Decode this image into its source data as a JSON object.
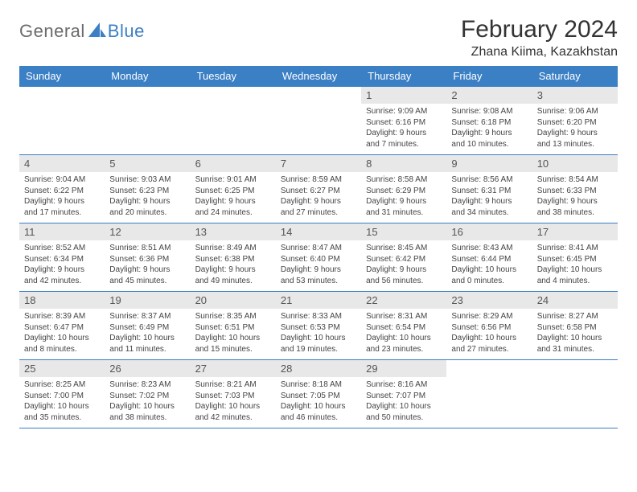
{
  "logo": {
    "text1": "General",
    "text2": "Blue"
  },
  "title": {
    "month": "February 2024",
    "location": "Zhana Kiima, Kazakhstan"
  },
  "styling": {
    "header_bg": "#3b7fc4",
    "header_text": "#ffffff",
    "daynum_bg": "#e8e8e8",
    "row_border": "#3b7fc4",
    "logo_gray": "#6b6b6b",
    "logo_blue": "#3b7fc4",
    "body_bg": "#ffffff",
    "title_fontsize": 30,
    "location_fontsize": 16,
    "dayheader_fontsize": 13,
    "cell_fontsize": 10
  },
  "dayHeaders": [
    "Sunday",
    "Monday",
    "Tuesday",
    "Wednesday",
    "Thursday",
    "Friday",
    "Saturday"
  ],
  "weeks": [
    [
      null,
      null,
      null,
      null,
      {
        "d": "1",
        "sunrise": "9:09 AM",
        "sunset": "6:16 PM",
        "daylight": "9 hours and 7 minutes."
      },
      {
        "d": "2",
        "sunrise": "9:08 AM",
        "sunset": "6:18 PM",
        "daylight": "9 hours and 10 minutes."
      },
      {
        "d": "3",
        "sunrise": "9:06 AM",
        "sunset": "6:20 PM",
        "daylight": "9 hours and 13 minutes."
      }
    ],
    [
      {
        "d": "4",
        "sunrise": "9:04 AM",
        "sunset": "6:22 PM",
        "daylight": "9 hours and 17 minutes."
      },
      {
        "d": "5",
        "sunrise": "9:03 AM",
        "sunset": "6:23 PM",
        "daylight": "9 hours and 20 minutes."
      },
      {
        "d": "6",
        "sunrise": "9:01 AM",
        "sunset": "6:25 PM",
        "daylight": "9 hours and 24 minutes."
      },
      {
        "d": "7",
        "sunrise": "8:59 AM",
        "sunset": "6:27 PM",
        "daylight": "9 hours and 27 minutes."
      },
      {
        "d": "8",
        "sunrise": "8:58 AM",
        "sunset": "6:29 PM",
        "daylight": "9 hours and 31 minutes."
      },
      {
        "d": "9",
        "sunrise": "8:56 AM",
        "sunset": "6:31 PM",
        "daylight": "9 hours and 34 minutes."
      },
      {
        "d": "10",
        "sunrise": "8:54 AM",
        "sunset": "6:33 PM",
        "daylight": "9 hours and 38 minutes."
      }
    ],
    [
      {
        "d": "11",
        "sunrise": "8:52 AM",
        "sunset": "6:34 PM",
        "daylight": "9 hours and 42 minutes."
      },
      {
        "d": "12",
        "sunrise": "8:51 AM",
        "sunset": "6:36 PM",
        "daylight": "9 hours and 45 minutes."
      },
      {
        "d": "13",
        "sunrise": "8:49 AM",
        "sunset": "6:38 PM",
        "daylight": "9 hours and 49 minutes."
      },
      {
        "d": "14",
        "sunrise": "8:47 AM",
        "sunset": "6:40 PM",
        "daylight": "9 hours and 53 minutes."
      },
      {
        "d": "15",
        "sunrise": "8:45 AM",
        "sunset": "6:42 PM",
        "daylight": "9 hours and 56 minutes."
      },
      {
        "d": "16",
        "sunrise": "8:43 AM",
        "sunset": "6:44 PM",
        "daylight": "10 hours and 0 minutes."
      },
      {
        "d": "17",
        "sunrise": "8:41 AM",
        "sunset": "6:45 PM",
        "daylight": "10 hours and 4 minutes."
      }
    ],
    [
      {
        "d": "18",
        "sunrise": "8:39 AM",
        "sunset": "6:47 PM",
        "daylight": "10 hours and 8 minutes."
      },
      {
        "d": "19",
        "sunrise": "8:37 AM",
        "sunset": "6:49 PM",
        "daylight": "10 hours and 11 minutes."
      },
      {
        "d": "20",
        "sunrise": "8:35 AM",
        "sunset": "6:51 PM",
        "daylight": "10 hours and 15 minutes."
      },
      {
        "d": "21",
        "sunrise": "8:33 AM",
        "sunset": "6:53 PM",
        "daylight": "10 hours and 19 minutes."
      },
      {
        "d": "22",
        "sunrise": "8:31 AM",
        "sunset": "6:54 PM",
        "daylight": "10 hours and 23 minutes."
      },
      {
        "d": "23",
        "sunrise": "8:29 AM",
        "sunset": "6:56 PM",
        "daylight": "10 hours and 27 minutes."
      },
      {
        "d": "24",
        "sunrise": "8:27 AM",
        "sunset": "6:58 PM",
        "daylight": "10 hours and 31 minutes."
      }
    ],
    [
      {
        "d": "25",
        "sunrise": "8:25 AM",
        "sunset": "7:00 PM",
        "daylight": "10 hours and 35 minutes."
      },
      {
        "d": "26",
        "sunrise": "8:23 AM",
        "sunset": "7:02 PM",
        "daylight": "10 hours and 38 minutes."
      },
      {
        "d": "27",
        "sunrise": "8:21 AM",
        "sunset": "7:03 PM",
        "daylight": "10 hours and 42 minutes."
      },
      {
        "d": "28",
        "sunrise": "8:18 AM",
        "sunset": "7:05 PM",
        "daylight": "10 hours and 46 minutes."
      },
      {
        "d": "29",
        "sunrise": "8:16 AM",
        "sunset": "7:07 PM",
        "daylight": "10 hours and 50 minutes."
      },
      null,
      null
    ]
  ],
  "labels": {
    "sunrise": "Sunrise: ",
    "sunset": "Sunset: ",
    "daylight": "Daylight: "
  }
}
